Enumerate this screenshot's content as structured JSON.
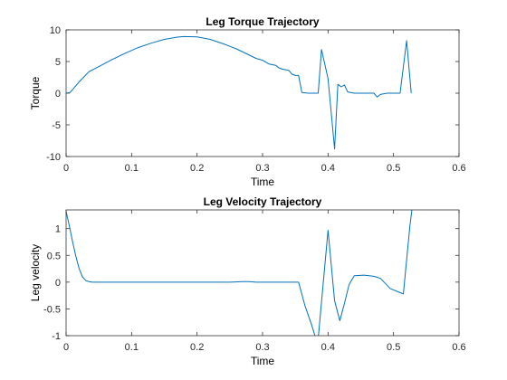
{
  "chart_data": [
    {
      "type": "line",
      "title": "Leg Torque Trajectory",
      "xlabel": "Time",
      "ylabel": "Torque",
      "xlim": [
        0,
        0.6
      ],
      "ylim": [
        -10,
        10
      ],
      "xticks": [
        0,
        0.1,
        0.2,
        0.3,
        0.4,
        0.5,
        0.6
      ],
      "xtick_labels": [
        "0",
        "0.1",
        "0.2",
        "0.3",
        "0.4",
        "0.5",
        "0.6"
      ],
      "yticks": [
        -10,
        -5,
        0,
        5,
        10
      ],
      "ytick_labels": [
        "-10",
        "-5",
        "0",
        "5",
        "10"
      ],
      "grid": false,
      "series": [
        {
          "color": "#0072BD",
          "x": [
            0,
            0.006,
            0.02,
            0.035,
            0.05,
            0.07,
            0.09,
            0.11,
            0.13,
            0.15,
            0.17,
            0.18,
            0.2,
            0.22,
            0.24,
            0.26,
            0.28,
            0.29,
            0.3,
            0.31,
            0.32,
            0.325,
            0.33,
            0.34,
            0.345,
            0.35,
            0.355,
            0.36,
            0.37,
            0.38,
            0.385,
            0.39,
            0.4,
            0.41,
            0.415,
            0.42,
            0.425,
            0.43,
            0.44,
            0.45,
            0.46,
            0.47,
            0.475,
            0.48,
            0.49,
            0.5,
            0.51,
            0.52,
            0.527
          ],
          "y": [
            0,
            0.1,
            1.8,
            3.4,
            4.2,
            5.3,
            6.3,
            7.2,
            7.9,
            8.5,
            8.85,
            8.95,
            8.9,
            8.5,
            7.8,
            7.0,
            6.0,
            5.5,
            5.2,
            4.6,
            4.4,
            4.0,
            3.8,
            3.6,
            3.0,
            2.8,
            2.8,
            0.1,
            0.0,
            0.0,
            0.0,
            6.9,
            2.3,
            -8.8,
            1.4,
            1.0,
            1.3,
            0.2,
            0.0,
            0.0,
            0.0,
            0.0,
            -0.6,
            -0.2,
            0.0,
            0.0,
            0.0,
            8.3,
            0.0
          ]
        }
      ]
    },
    {
      "type": "line",
      "title": "Leg Velocity Trajectory",
      "xlabel": "Time",
      "ylabel": "Leg velocity",
      "xlim": [
        0,
        0.6
      ],
      "ylim": [
        -1,
        1.35
      ],
      "xticks": [
        0,
        0.1,
        0.2,
        0.3,
        0.4,
        0.5,
        0.6
      ],
      "xtick_labels": [
        "0",
        "0.1",
        "0.2",
        "0.3",
        "0.4",
        "0.5",
        "0.6"
      ],
      "yticks": [
        -1,
        -0.5,
        0,
        0.5,
        1
      ],
      "ytick_labels": [
        "-1",
        "-0.5",
        "0",
        "0.5",
        "1"
      ],
      "grid": false,
      "series": [
        {
          "color": "#0072BD",
          "x": [
            0,
            0.005,
            0.01,
            0.015,
            0.02,
            0.025,
            0.03,
            0.035,
            0.04,
            0.1,
            0.2,
            0.25,
            0.27,
            0.28,
            0.29,
            0.3,
            0.33,
            0.355,
            0.365,
            0.375,
            0.38,
            0.385,
            0.4,
            0.41,
            0.418,
            0.425,
            0.432,
            0.44,
            0.455,
            0.47,
            0.48,
            0.495,
            0.515,
            0.525,
            0.528
          ],
          "y": [
            1.32,
            1.05,
            0.75,
            0.48,
            0.25,
            0.1,
            0.03,
            0.01,
            0.0,
            0.0,
            0.0,
            0.0,
            0.01,
            0.01,
            0.0,
            0.0,
            0.0,
            0.0,
            -0.45,
            -0.8,
            -1.0,
            -1.05,
            0.97,
            -0.35,
            -0.72,
            -0.4,
            -0.05,
            0.12,
            0.13,
            0.11,
            0.07,
            -0.12,
            -0.22,
            1.05,
            1.35
          ]
        }
      ]
    }
  ]
}
